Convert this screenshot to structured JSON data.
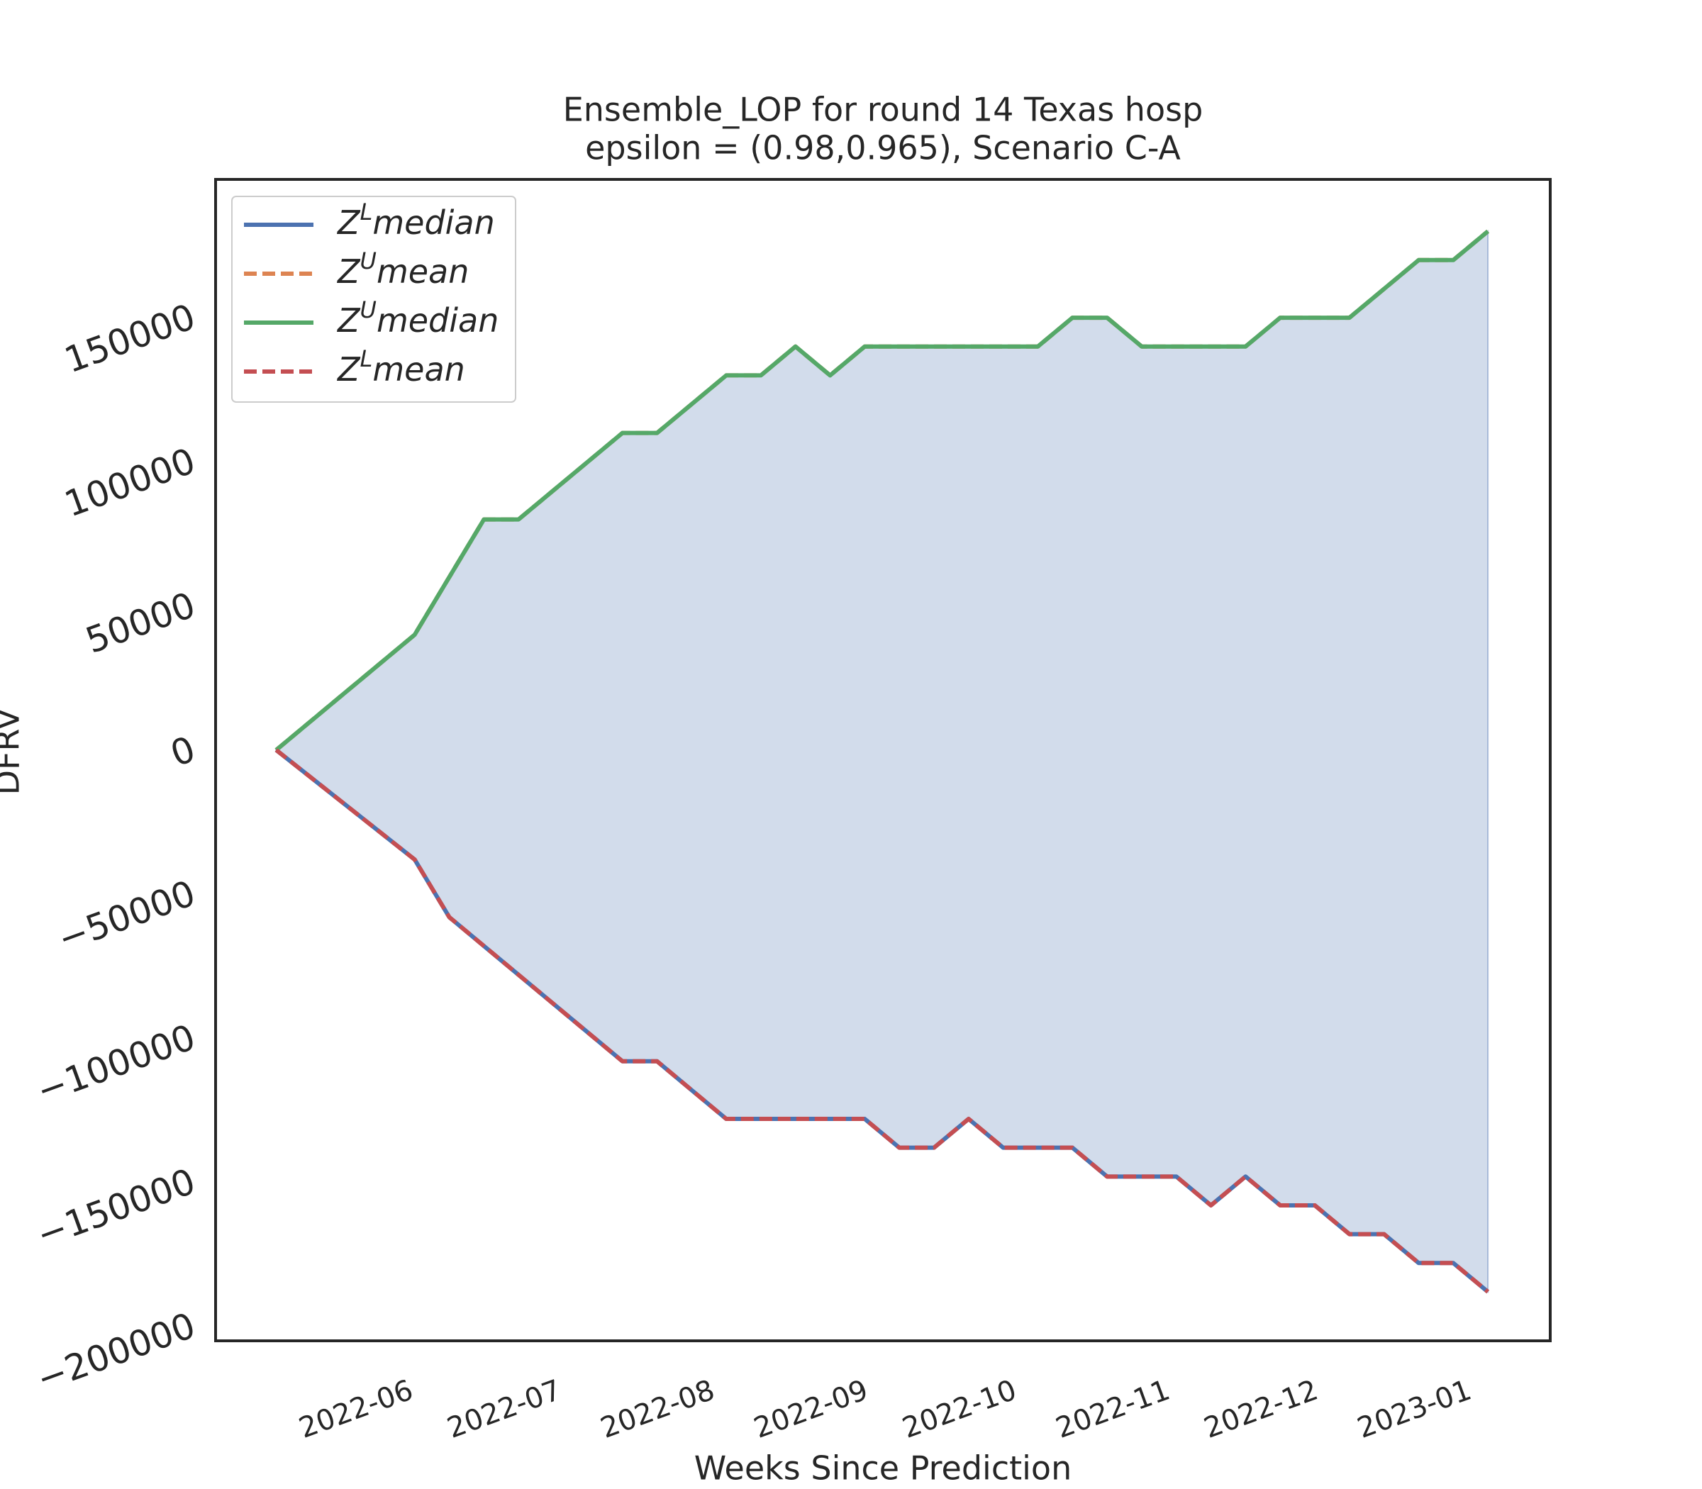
{
  "chart_data": {
    "type": "line",
    "title": "Ensemble_LOP for round 14 Texas  hosp",
    "subtitle": "epsilon = (0.98,0.965), Scenario C-A",
    "xlabel": "Weeks Since Prediction",
    "ylabel": "DFRV",
    "x": [
      0,
      1,
      2,
      3,
      4,
      5,
      6,
      7,
      8,
      9,
      10,
      11,
      12,
      13,
      14,
      15,
      16,
      17,
      18,
      19,
      20,
      21,
      22,
      23,
      24,
      25,
      26,
      27,
      28,
      29,
      30,
      31,
      32,
      33,
      34,
      35
    ],
    "xlim": [
      -1.75,
      36.8
    ],
    "xticks": [
      {
        "value": 3.93,
        "label": "2022-06"
      },
      {
        "value": 8.21,
        "label": "2022-07"
      },
      {
        "value": 12.64,
        "label": "2022-08"
      },
      {
        "value": 17.07,
        "label": "2022-09"
      },
      {
        "value": 21.36,
        "label": "2022-10"
      },
      {
        "value": 25.79,
        "label": "2022-11"
      },
      {
        "value": 30.07,
        "label": "2022-12"
      },
      {
        "value": 34.5,
        "label": "2023-01"
      }
    ],
    "ylim": [
      -205000,
      198000
    ],
    "yticks": [
      {
        "value": -200000,
        "label": "−200000"
      },
      {
        "value": -150000,
        "label": "−150000"
      },
      {
        "value": -100000,
        "label": "−100000"
      },
      {
        "value": -50000,
        "label": "−50000"
      },
      0,
      50000,
      100000,
      150000
    ],
    "grid": false,
    "legend": "upper left",
    "fill_between": {
      "color": "#4c72b0",
      "opacity": 0.25
    },
    "series": [
      {
        "name": "ZLmedian",
        "color": "#4c72b0",
        "dash": false,
        "values": [
          0,
          -9500,
          -19000,
          -28500,
          -38000,
          -58000,
          -68000,
          -78000,
          -88000,
          -98000,
          -108000,
          -108000,
          -118000,
          -128000,
          -128000,
          -128000,
          -128000,
          -128000,
          -138000,
          -138000,
          -128000,
          -138000,
          -138000,
          -138000,
          -148000,
          -148000,
          -148000,
          -158000,
          -148000,
          -158000,
          -158000,
          -168000,
          -168000,
          -178000,
          -178000,
          -188000
        ]
      },
      {
        "name": "ZUmean",
        "color": "#dd8452",
        "dash": true,
        "values": [
          0,
          10000,
          20000,
          30000,
          40000,
          60000,
          80000,
          80000,
          90000,
          100000,
          110000,
          110000,
          120000,
          130000,
          130000,
          140000,
          130000,
          140000,
          140000,
          140000,
          140000,
          140000,
          140000,
          150000,
          150000,
          140000,
          140000,
          140000,
          140000,
          150000,
          150000,
          150000,
          160000,
          170000,
          170000,
          180000
        ]
      },
      {
        "name": "ZUmedian",
        "color": "#55a868",
        "dash": false,
        "values": [
          0,
          10000,
          20000,
          30000,
          40000,
          60000,
          80000,
          80000,
          90000,
          100000,
          110000,
          110000,
          120000,
          130000,
          130000,
          140000,
          130000,
          140000,
          140000,
          140000,
          140000,
          140000,
          140000,
          150000,
          150000,
          140000,
          140000,
          140000,
          140000,
          150000,
          150000,
          150000,
          160000,
          170000,
          170000,
          180000
        ]
      },
      {
        "name": "ZLmean",
        "color": "#c44e52",
        "dash": true,
        "values": [
          0,
          -9500,
          -19000,
          -28500,
          -38000,
          -58000,
          -68000,
          -78000,
          -88000,
          -98000,
          -108000,
          -108000,
          -118000,
          -128000,
          -128000,
          -128000,
          -128000,
          -128000,
          -138000,
          -138000,
          -128000,
          -138000,
          -138000,
          -138000,
          -148000,
          -148000,
          -148000,
          -158000,
          -148000,
          -158000,
          -158000,
          -168000,
          -168000,
          -178000,
          -178000,
          -188000
        ]
      }
    ]
  }
}
